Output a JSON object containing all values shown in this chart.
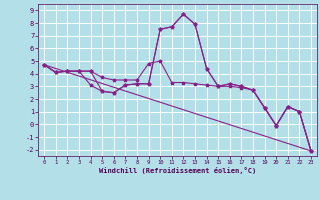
{
  "xlabel": "Windchill (Refroidissement éolien,°C)",
  "background_color": "#b2dfe8",
  "grid_color": "#ffffff",
  "line_color": "#882288",
  "xlim": [
    -0.5,
    23.5
  ],
  "ylim": [
    -2.5,
    9.5
  ],
  "xticks": [
    0,
    1,
    2,
    3,
    4,
    5,
    6,
    7,
    8,
    9,
    10,
    11,
    12,
    13,
    14,
    15,
    16,
    17,
    18,
    19,
    20,
    21,
    22,
    23
  ],
  "yticks": [
    -2,
    -1,
    0,
    1,
    2,
    3,
    4,
    5,
    6,
    7,
    8,
    9
  ],
  "line1_x": [
    0,
    1,
    2,
    3,
    4,
    5,
    6,
    7,
    8,
    9,
    10,
    11,
    12,
    13,
    14,
    15,
    16,
    17,
    18,
    19,
    20,
    21,
    22,
    23
  ],
  "line1_y": [
    4.7,
    4.1,
    4.2,
    4.2,
    4.2,
    2.6,
    2.5,
    3.1,
    3.2,
    3.2,
    7.5,
    7.7,
    8.7,
    7.9,
    4.4,
    3.0,
    3.2,
    3.0,
    2.7,
    1.3,
    -0.1,
    1.4,
    1.0,
    -2.1
  ],
  "line2_x": [
    0,
    1,
    2,
    3,
    4,
    5,
    6,
    7,
    8,
    9,
    10,
    11,
    12,
    13,
    14,
    15,
    16,
    17,
    18,
    19,
    20,
    21,
    22,
    23
  ],
  "line2_y": [
    4.7,
    4.1,
    4.2,
    4.2,
    4.2,
    3.7,
    3.5,
    3.5,
    3.5,
    4.8,
    5.0,
    3.3,
    3.3,
    3.2,
    3.1,
    3.0,
    3.0,
    2.9,
    2.7,
    1.3,
    -0.1,
    1.4,
    1.0,
    -2.1
  ],
  "line3_x": [
    0,
    23
  ],
  "line3_y": [
    4.7,
    -2.1
  ],
  "line4_x": [
    0,
    1,
    2,
    3,
    4,
    5,
    6,
    7,
    8,
    9,
    10,
    11,
    12,
    13,
    14,
    15,
    16,
    17,
    18,
    19,
    20,
    21,
    22,
    23
  ],
  "line4_y": [
    4.7,
    4.1,
    4.2,
    4.2,
    3.1,
    2.6,
    2.5,
    3.1,
    3.2,
    3.2,
    7.5,
    7.7,
    8.7,
    7.9,
    4.4,
    3.0,
    3.2,
    3.0,
    2.7,
    1.3,
    -0.1,
    1.4,
    1.0,
    -2.1
  ]
}
